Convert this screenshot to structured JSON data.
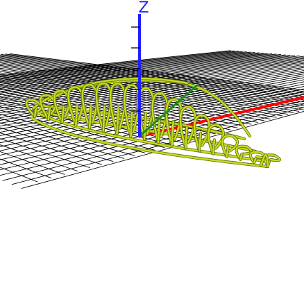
{
  "viewport": {
    "background": "#ffffff"
  },
  "axes": {
    "z_label": "Z",
    "z_color": "#1f1fff",
    "x_color": "#ff0000",
    "y_color": "#1a8f1a"
  },
  "grid": {
    "color": "#000000"
  },
  "model": {
    "wireframe_color": "#c6dc1e",
    "outline_color": "#5e6a08"
  }
}
